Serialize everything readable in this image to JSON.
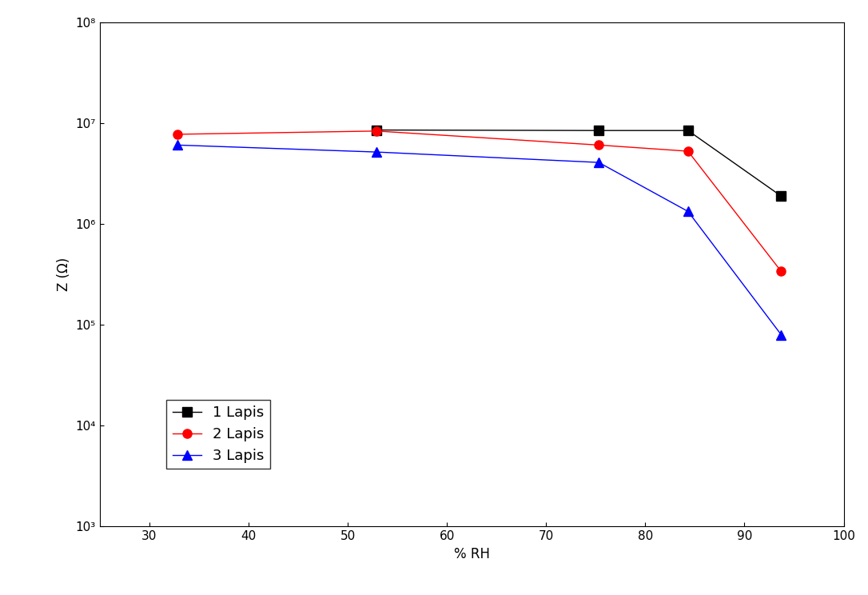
{
  "chart_data": {
    "type": "line",
    "x_label": "% RH",
    "y_label": "Z (Ω)",
    "x": [
      32.8,
      52.9,
      75.3,
      84.3,
      93.7
    ],
    "series": [
      {
        "name": "1 Lapis",
        "color": "#000000",
        "marker": "square",
        "values": [
          null,
          8600000,
          8500000,
          8500000,
          1900000
        ]
      },
      {
        "name": "2 Lapis",
        "color": "#ff0000",
        "marker": "circle",
        "values": [
          7800000,
          8400000,
          6100000,
          5300000,
          340000
        ]
      },
      {
        "name": "3 Lapis",
        "color": "#0000ff",
        "marker": "triangle",
        "values": [
          6100000,
          5200000,
          4100000,
          1340000,
          80000
        ]
      }
    ],
    "xlim": [
      25,
      100
    ],
    "xticks": [
      30,
      40,
      50,
      60,
      70,
      80,
      90,
      100
    ],
    "ylim": [
      1000,
      100000000
    ],
    "yticks": [
      {
        "value": 1000,
        "label": "10³"
      },
      {
        "value": 10000,
        "label": "10⁴"
      },
      {
        "value": 100000,
        "label": "10⁵"
      },
      {
        "value": 1000000,
        "label": "10⁶"
      },
      {
        "value": 10000000,
        "label": "10⁷"
      },
      {
        "value": 100000000,
        "label": "10⁸"
      }
    ],
    "log": "y",
    "grid": false,
    "legend": "lower left"
  }
}
